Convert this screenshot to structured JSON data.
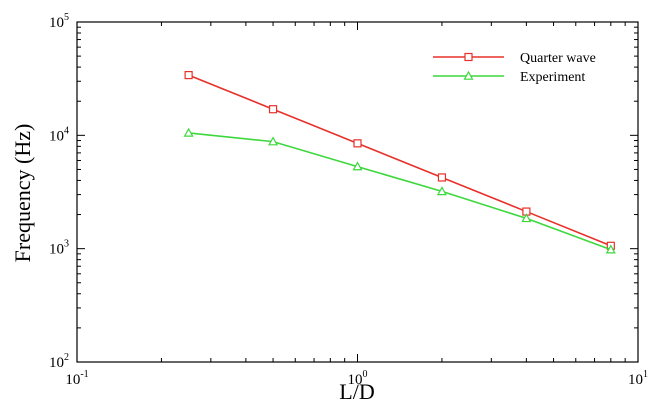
{
  "chart_data": {
    "type": "line",
    "xlabel": "L/D",
    "ylabel": "Frequency (Hz)",
    "xscale": "log",
    "yscale": "log",
    "xlim": [
      0.1,
      10
    ],
    "ylim": [
      100,
      100000
    ],
    "grid": false,
    "legend_position": "top-right",
    "x_ticks": [
      {
        "value": 0.1,
        "base": "10",
        "exp": "-1"
      },
      {
        "value": 1,
        "base": "10",
        "exp": "0"
      },
      {
        "value": 10,
        "base": "10",
        "exp": "1"
      }
    ],
    "y_ticks": [
      {
        "value": 100,
        "base": "10",
        "exp": "2"
      },
      {
        "value": 1000,
        "base": "10",
        "exp": "3"
      },
      {
        "value": 10000,
        "base": "10",
        "exp": "4"
      },
      {
        "value": 100000,
        "base": "10",
        "exp": "5"
      }
    ],
    "series": [
      {
        "name": "Quarter wave",
        "color": "#e8302a",
        "marker": "square",
        "x": [
          0.25,
          0.5,
          1,
          2,
          4,
          8
        ],
        "y": [
          34000,
          17000,
          8500,
          4250,
          2125,
          1060
        ]
      },
      {
        "name": "Experiment",
        "color": "#3cd83c",
        "marker": "triangle",
        "x": [
          0.25,
          0.5,
          1,
          2,
          4,
          8
        ],
        "y": [
          10500,
          8800,
          5300,
          3200,
          1850,
          980
        ]
      }
    ]
  }
}
